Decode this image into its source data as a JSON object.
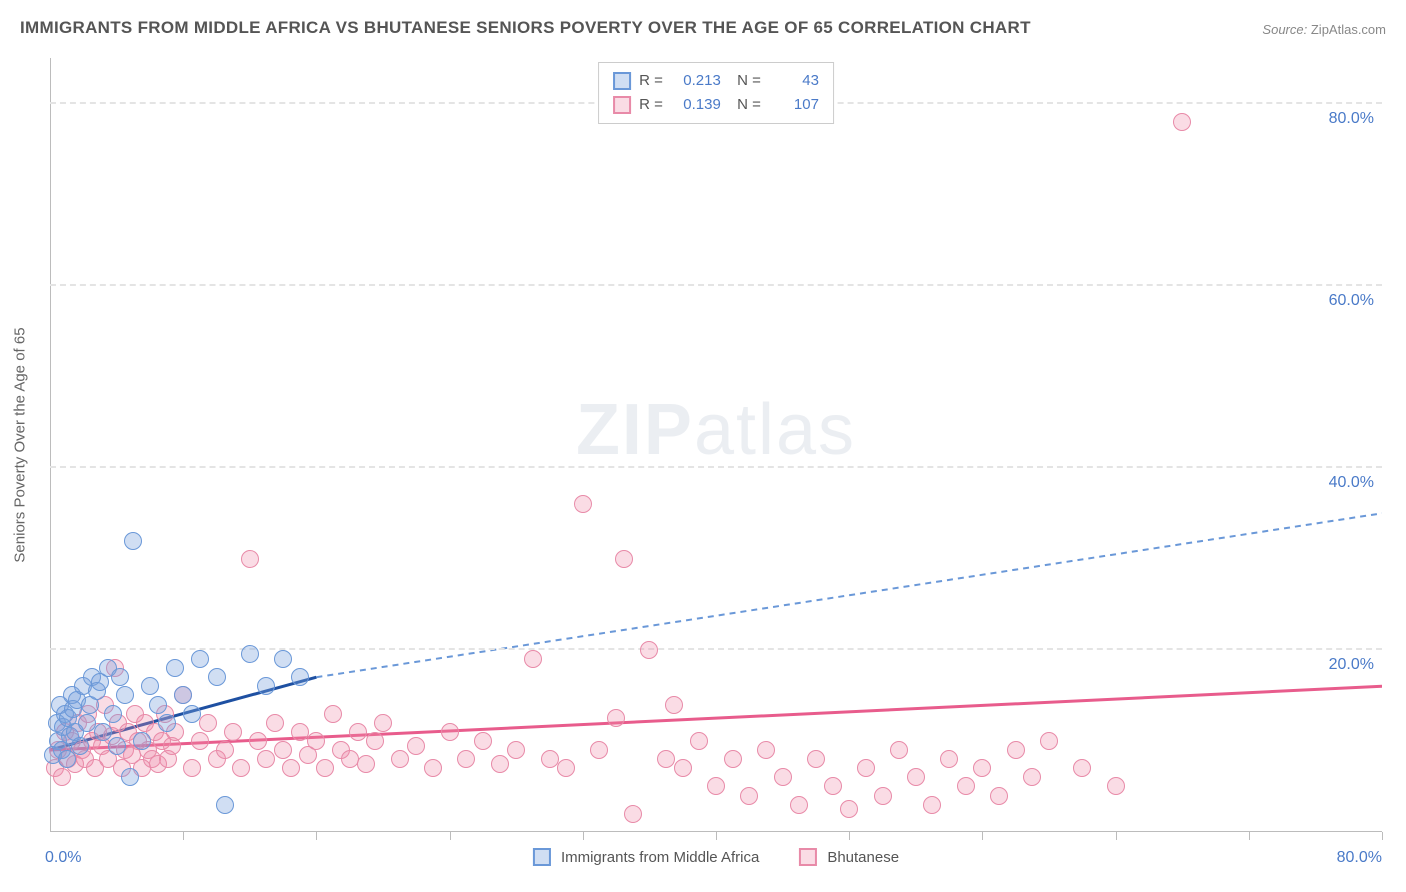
{
  "title": "IMMIGRANTS FROM MIDDLE AFRICA VS BHUTANESE SENIORS POVERTY OVER THE AGE OF 65 CORRELATION CHART",
  "source_label": "Source:",
  "source_value": "ZipAtlas.com",
  "y_axis_title": "Seniors Poverty Over the Age of 65",
  "watermark_a": "ZIP",
  "watermark_b": "atlas",
  "chart": {
    "type": "scatter",
    "xlim": [
      0,
      80
    ],
    "ylim": [
      0,
      85
    ],
    "x_label_min": "0.0%",
    "x_label_max": "80.0%",
    "y_ticks": [
      {
        "v": 20,
        "label": "20.0%"
      },
      {
        "v": 40,
        "label": "40.0%"
      },
      {
        "v": 60,
        "label": "60.0%"
      },
      {
        "v": 80,
        "label": "80.0%"
      }
    ],
    "x_minor_ticks": [
      8,
      16,
      24,
      32,
      40,
      48,
      56,
      64,
      72,
      80
    ],
    "grid_color": "#e4e4e4",
    "axis_color": "#bcbcbc",
    "background_color": "#ffffff",
    "tick_label_color": "#4a7ac8",
    "marker_radius": 9,
    "series": [
      {
        "name": "Immigrants from Middle Africa",
        "short": "blue",
        "R": "0.213",
        "N": "43",
        "fill": "rgba(120,160,220,0.35)",
        "stroke": "#6a98d8",
        "trend_solid": {
          "x1": 0,
          "y1": 9,
          "x2": 16,
          "y2": 17,
          "color": "#1e50a2",
          "width": 3
        },
        "trend_dash": {
          "x1": 16,
          "y1": 17,
          "x2": 80,
          "y2": 35,
          "color": "#6a98d8",
          "width": 2
        },
        "points": [
          [
            0.2,
            8.5
          ],
          [
            0.4,
            12
          ],
          [
            0.5,
            10
          ],
          [
            0.6,
            14
          ],
          [
            0.7,
            9
          ],
          [
            0.8,
            11.5
          ],
          [
            0.9,
            13
          ],
          [
            1.0,
            8
          ],
          [
            1.1,
            12.5
          ],
          [
            1.2,
            10.5
          ],
          [
            1.3,
            15
          ],
          [
            1.4,
            13.5
          ],
          [
            1.5,
            11
          ],
          [
            1.6,
            14.5
          ],
          [
            1.8,
            9.5
          ],
          [
            2.0,
            16
          ],
          [
            2.2,
            12
          ],
          [
            2.4,
            14
          ],
          [
            2.5,
            17
          ],
          [
            2.8,
            15.5
          ],
          [
            3.0,
            16.5
          ],
          [
            3.2,
            11
          ],
          [
            3.5,
            18
          ],
          [
            3.8,
            13
          ],
          [
            4.0,
            9.5
          ],
          [
            4.2,
            17
          ],
          [
            4.5,
            15
          ],
          [
            4.8,
            6
          ],
          [
            5.0,
            32
          ],
          [
            5.5,
            10
          ],
          [
            6.0,
            16
          ],
          [
            6.5,
            14
          ],
          [
            7.0,
            12
          ],
          [
            7.5,
            18
          ],
          [
            8.0,
            15
          ],
          [
            8.5,
            13
          ],
          [
            9.0,
            19
          ],
          [
            10.0,
            17
          ],
          [
            10.5,
            3
          ],
          [
            12.0,
            19.5
          ],
          [
            13.0,
            16
          ],
          [
            14.0,
            19
          ],
          [
            15.0,
            17
          ]
        ]
      },
      {
        "name": "Bhutanese",
        "short": "pink",
        "R": "0.139",
        "N": "107",
        "fill": "rgba(240,140,170,0.3)",
        "stroke": "#e88aa8",
        "trend_solid": {
          "x1": 0,
          "y1": 9,
          "x2": 80,
          "y2": 16,
          "color": "#e85c8c",
          "width": 3
        },
        "trend_dash": null,
        "points": [
          [
            0.3,
            7
          ],
          [
            0.5,
            9
          ],
          [
            0.7,
            6
          ],
          [
            0.9,
            11
          ],
          [
            1.1,
            8
          ],
          [
            1.3,
            10
          ],
          [
            1.5,
            7.5
          ],
          [
            1.7,
            12
          ],
          [
            1.9,
            9
          ],
          [
            2.1,
            8
          ],
          [
            2.3,
            13
          ],
          [
            2.5,
            10
          ],
          [
            2.7,
            7
          ],
          [
            2.9,
            11
          ],
          [
            3.1,
            9.5
          ],
          [
            3.3,
            14
          ],
          [
            3.5,
            8
          ],
          [
            3.7,
            10.5
          ],
          [
            3.9,
            18
          ],
          [
            4.1,
            12
          ],
          [
            4.3,
            7
          ],
          [
            4.5,
            9
          ],
          [
            4.7,
            11
          ],
          [
            4.9,
            8.5
          ],
          [
            5.1,
            13
          ],
          [
            5.3,
            10
          ],
          [
            5.5,
            7
          ],
          [
            5.7,
            12
          ],
          [
            5.9,
            9
          ],
          [
            6.1,
            8
          ],
          [
            6.3,
            11
          ],
          [
            6.5,
            7.5
          ],
          [
            6.7,
            10
          ],
          [
            6.9,
            13
          ],
          [
            7.1,
            8
          ],
          [
            7.3,
            9.5
          ],
          [
            7.5,
            11
          ],
          [
            8.0,
            15
          ],
          [
            8.5,
            7
          ],
          [
            9.0,
            10
          ],
          [
            9.5,
            12
          ],
          [
            10.0,
            8
          ],
          [
            10.5,
            9
          ],
          [
            11.0,
            11
          ],
          [
            11.5,
            7
          ],
          [
            12.0,
            30
          ],
          [
            12.5,
            10
          ],
          [
            13.0,
            8
          ],
          [
            13.5,
            12
          ],
          [
            14.0,
            9
          ],
          [
            14.5,
            7
          ],
          [
            15.0,
            11
          ],
          [
            15.5,
            8.5
          ],
          [
            16.0,
            10
          ],
          [
            16.5,
            7
          ],
          [
            17.0,
            13
          ],
          [
            17.5,
            9
          ],
          [
            18.0,
            8
          ],
          [
            18.5,
            11
          ],
          [
            19.0,
            7.5
          ],
          [
            19.5,
            10
          ],
          [
            20.0,
            12
          ],
          [
            21.0,
            8
          ],
          [
            22.0,
            9.5
          ],
          [
            23.0,
            7
          ],
          [
            24.0,
            11
          ],
          [
            25.0,
            8
          ],
          [
            26.0,
            10
          ],
          [
            27.0,
            7.5
          ],
          [
            28.0,
            9
          ],
          [
            29.0,
            19
          ],
          [
            30.0,
            8
          ],
          [
            31.0,
            7
          ],
          [
            32.0,
            36
          ],
          [
            33.0,
            9
          ],
          [
            34.0,
            12.5
          ],
          [
            34.5,
            30
          ],
          [
            35.0,
            2
          ],
          [
            36.0,
            20
          ],
          [
            37.0,
            8
          ],
          [
            37.5,
            14
          ],
          [
            38.0,
            7
          ],
          [
            39.0,
            10
          ],
          [
            40.0,
            5
          ],
          [
            41.0,
            8
          ],
          [
            42.0,
            4
          ],
          [
            43.0,
            9
          ],
          [
            44.0,
            6
          ],
          [
            45.0,
            3
          ],
          [
            46.0,
            8
          ],
          [
            47.0,
            5
          ],
          [
            48.0,
            2.5
          ],
          [
            49.0,
            7
          ],
          [
            50.0,
            4
          ],
          [
            51.0,
            9
          ],
          [
            52.0,
            6
          ],
          [
            53.0,
            3
          ],
          [
            54.0,
            8
          ],
          [
            55.0,
            5
          ],
          [
            56.0,
            7
          ],
          [
            57.0,
            4
          ],
          [
            58.0,
            9
          ],
          [
            59.0,
            6
          ],
          [
            60.0,
            10
          ],
          [
            62.0,
            7
          ],
          [
            64.0,
            5
          ],
          [
            68.0,
            78
          ]
        ]
      }
    ]
  },
  "legend": {
    "item1": "Immigrants from Middle Africa",
    "item2": "Bhutanese"
  }
}
